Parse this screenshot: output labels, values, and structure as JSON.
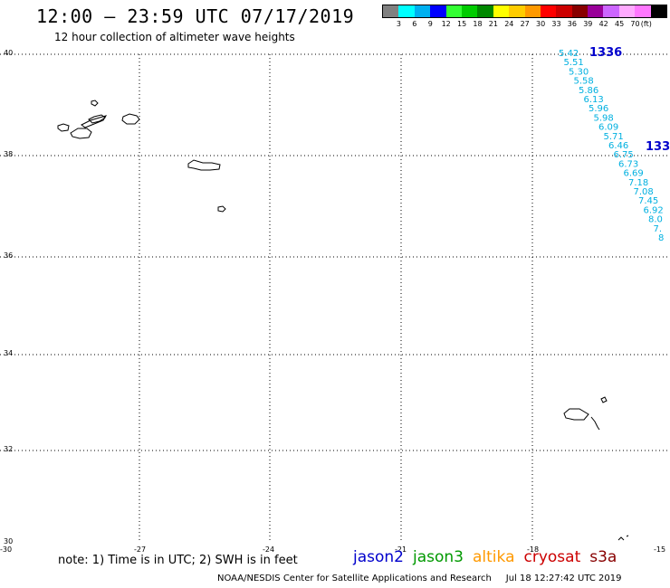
{
  "header": {
    "title": "12:00 – 23:59 UTC 07/17/2019",
    "subtitle": "12 hour collection of altimeter wave heights"
  },
  "color_scale": {
    "colors": [
      "#808080",
      "#00ffff",
      "#00b0f0",
      "#0000ff",
      "#33ff33",
      "#00cc00",
      "#008800",
      "#ffff00",
      "#ffcc00",
      "#ff9900",
      "#ff0000",
      "#cc0000",
      "#880000",
      "#990099",
      "#cc66ff",
      "#ffaaff",
      "#ff77ff",
      "#000000"
    ],
    "labels": [
      "3",
      "6",
      "9",
      "12",
      "15",
      "18",
      "21",
      "24",
      "27",
      "30",
      "33",
      "36",
      "39",
      "42",
      "45",
      "70"
    ],
    "unit": "(ft)"
  },
  "axes": {
    "lat_labels": [
      "40",
      "38",
      "36",
      "34",
      "32",
      "30"
    ],
    "lon_labels": [
      "-30",
      "-27",
      "-24",
      "-21",
      "-18",
      "-15"
    ]
  },
  "track": {
    "pass_labels": [
      "1336",
      "133"
    ],
    "readings": [
      "5.42",
      "5.51",
      "5.30",
      "5.58",
      "5.86",
      "6.13",
      "5.96",
      "5.98",
      "6.09",
      "5.71",
      "6.46",
      "6.75",
      "6.73",
      "6.69",
      "7.18",
      "7.08",
      "7.45",
      "6.92",
      "8.0",
      "7.",
      "8"
    ]
  },
  "note": "note: 1) Time is in UTC; 2) SWH is in feet",
  "legend": {
    "jason2": {
      "label": "jason2",
      "color": "#0000cc"
    },
    "jason3": {
      "label": "jason3",
      "color": "#009900"
    },
    "altika": {
      "label": "altika",
      "color": "#ff9900"
    },
    "cryosat": {
      "label": "cryosat",
      "color": "#cc0000"
    },
    "s3a": {
      "label": "s3a",
      "color": "#880000"
    }
  },
  "footer": {
    "credit": "NOAA/NESDIS Center for Satellite Applications and Research",
    "timestamp": "Jul 18 12:27:42 UTC 2019"
  }
}
